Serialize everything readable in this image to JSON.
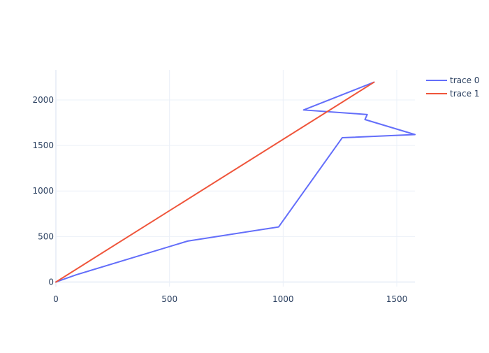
{
  "chart_data": {
    "type": "line",
    "title": "",
    "xlabel": "",
    "ylabel": "",
    "xlim": [
      0,
      1580
    ],
    "ylim": [
      -50,
      2330
    ],
    "x_ticks": [
      0,
      500,
      1000,
      1500
    ],
    "y_ticks": [
      0,
      500,
      1000,
      1500,
      2000
    ],
    "x_tick_labels": [
      "0",
      "500",
      "1000",
      "1500"
    ],
    "y_tick_labels": [
      "0",
      "500",
      "1000",
      "1500",
      "2000"
    ],
    "grid": true,
    "legend_position": "top-right",
    "series": [
      {
        "name": "trace 0",
        "color": "#636efa",
        "x": [
          0,
          90,
          580,
          980,
          1260,
          1580,
          1360,
          1370,
          1090,
          1400
        ],
        "y": [
          0,
          80,
          450,
          605,
          1585,
          1620,
          1785,
          1840,
          1890,
          2195
        ]
      },
      {
        "name": "trace 1",
        "color": "#ef553b",
        "x": [
          0,
          1400
        ],
        "y": [
          0,
          2195
        ]
      }
    ]
  }
}
